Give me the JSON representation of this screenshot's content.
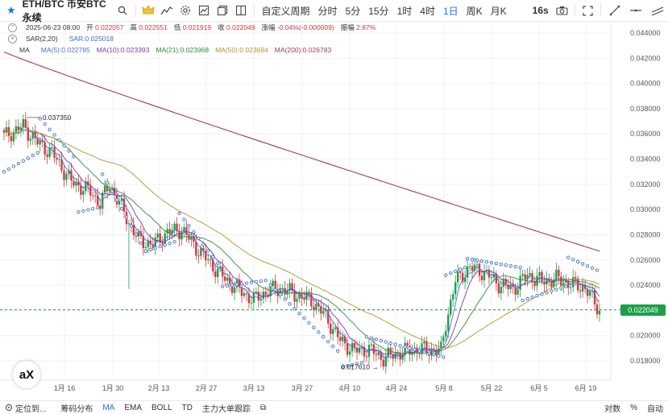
{
  "toolbar": {
    "symbol": "ETH/BTC 币安BTC永续",
    "intervals": [
      "自定义周期",
      "分时",
      "5分",
      "15分",
      "1时",
      "4时",
      "1日",
      "周K",
      "月K"
    ],
    "active_interval": "1日",
    "refresh": "16s"
  },
  "legend": {
    "line1": {
      "date": "2025-06-23 08:00",
      "open_label": "开",
      "open": "0.022057",
      "high_label": "高",
      "high": "0.022551",
      "low_label": "低",
      "low": "0.021919",
      "close_label": "收",
      "close": "0.022049",
      "change_label": "涨幅",
      "change": "-0.04%(-0.000009)",
      "amp_label": "振幅",
      "amp": "2.87%"
    },
    "sar": {
      "label": "SAR(2,20)",
      "value": "SAR:0.025018"
    },
    "ma": {
      "label": "MA",
      "items": [
        {
          "text": "MA(5):0.022785",
          "color": "#4a6fd1"
        },
        {
          "text": "MA(10):0.023393",
          "color": "#7a3aa8"
        },
        {
          "text": "MA(21):0.023968",
          "color": "#2e8b3a"
        },
        {
          "text": "MA(50):0.023694",
          "color": "#b8912c"
        },
        {
          "text": "MA(200):0.026783",
          "color": "#a33a57"
        }
      ]
    }
  },
  "chart_data": {
    "type": "candlestick",
    "y_ticks": [
      "0.044000",
      "0.042000",
      "0.040000",
      "0.038000",
      "0.036000",
      "0.034000",
      "0.032000",
      "0.030000",
      "0.028000",
      "0.026000",
      "0.024000",
      "0.022000",
      "0.020000",
      "0.018000"
    ],
    "x_ticks": [
      "1月 16",
      "1月 30",
      "2月 13",
      "2月 27",
      "3月 13",
      "3月 27",
      "4月 10",
      "4月 24",
      "5月 8",
      "5月 22",
      "6月 5",
      "6月 19"
    ],
    "ylim": [
      0.0169,
      0.0444
    ],
    "current_price": "0.022049",
    "high_annotation": "0.037350",
    "low_annotation": "0.017610",
    "colors": {
      "up": "#1e9e4a",
      "down": "#d9363e",
      "sar": "#3b6fd4",
      "grid": "#f2f2f2"
    }
  },
  "bottombar": {
    "locate": "定位到...",
    "tabs": [
      "筹码分布",
      "MA",
      "EMA",
      "BOLL",
      "TD",
      "主力大单跟踪"
    ],
    "active_tab": "MA",
    "right": [
      "对数",
      "%",
      "自动"
    ]
  },
  "watermark": "aX"
}
